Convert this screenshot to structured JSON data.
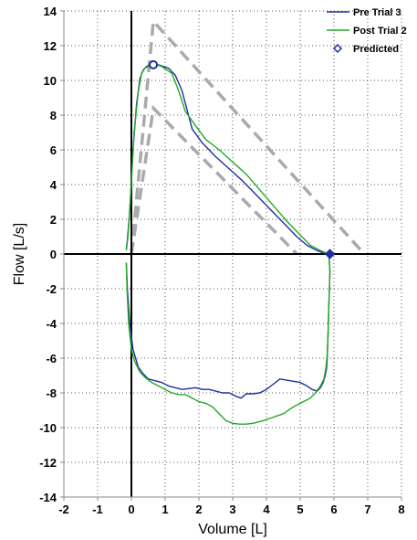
{
  "chart_data": {
    "type": "line",
    "xlabel": "Volume [L]",
    "ylabel": "Flow [L/s]",
    "xlim": [
      -2,
      8
    ],
    "ylim": [
      -14,
      14
    ],
    "xticks": [
      "-2",
      "-1",
      "0",
      "1",
      "2",
      "3",
      "4",
      "5",
      "6",
      "7",
      "8"
    ],
    "yticks": [
      "14",
      "12",
      "10",
      "8",
      "6",
      "4",
      "2",
      "0",
      "-2",
      "-4",
      "-6",
      "-8",
      "-10",
      "-12",
      "-14"
    ],
    "grid": true,
    "legend_position": "top-right",
    "series": [
      {
        "name": "Pre Trial 3",
        "color": "#1f2f9e",
        "x": [
          -0.15,
          -0.12,
          -0.05,
          0.05,
          0.15,
          0.25,
          0.35,
          0.45,
          0.55,
          0.65,
          0.8,
          0.95,
          1.1,
          1.3,
          1.5,
          1.8,
          2.1,
          2.5,
          2.9,
          3.3,
          3.7,
          4.1,
          4.5,
          4.9,
          5.2,
          5.5,
          5.7,
          5.85,
          5.88,
          5.85,
          5.82,
          5.8,
          5.78,
          5.74,
          5.68,
          5.6,
          5.5,
          5.35,
          5.2,
          5.0,
          4.7,
          4.4,
          4.2,
          4.0,
          3.8,
          3.6,
          3.4,
          3.25,
          3.1,
          2.9,
          2.7,
          2.5,
          2.3,
          2.1,
          1.9,
          1.7,
          1.5,
          1.3,
          1.1,
          0.9,
          0.7,
          0.5,
          0.35,
          0.2,
          0.05,
          -0.05,
          -0.12,
          -0.15
        ],
        "y": [
          0.3,
          0.8,
          2.5,
          6.0,
          8.6,
          10.1,
          10.6,
          10.8,
          10.9,
          10.9,
          10.9,
          10.8,
          10.7,
          10.3,
          9.4,
          7.2,
          6.4,
          5.6,
          4.9,
          4.2,
          3.4,
          2.6,
          1.8,
          1.0,
          0.5,
          0.2,
          0.05,
          0.0,
          -1.0,
          -3.0,
          -5.0,
          -6.0,
          -6.6,
          -7.0,
          -7.4,
          -7.7,
          -7.9,
          -7.8,
          -7.6,
          -7.4,
          -7.3,
          -7.2,
          -7.5,
          -7.8,
          -8.0,
          -8.05,
          -8.05,
          -8.3,
          -8.2,
          -8.0,
          -8.0,
          -7.9,
          -7.8,
          -7.8,
          -7.7,
          -7.75,
          -7.8,
          -7.7,
          -7.6,
          -7.4,
          -7.3,
          -7.2,
          -6.9,
          -6.5,
          -5.5,
          -4.0,
          -2.0,
          -0.5
        ]
      },
      {
        "name": "Post Trial 2",
        "color": "#22aa22",
        "x": [
          -0.15,
          -0.1,
          -0.02,
          0.08,
          0.2,
          0.3,
          0.4,
          0.5,
          0.6,
          0.75,
          0.9,
          1.05,
          1.2,
          1.4,
          1.6,
          1.9,
          2.2,
          2.6,
          3.0,
          3.4,
          3.8,
          4.2,
          4.6,
          5.0,
          5.3,
          5.6,
          5.78,
          5.85,
          5.88,
          5.85,
          5.82,
          5.8,
          5.76,
          5.7,
          5.6,
          5.45,
          5.3,
          5.1,
          4.8,
          4.5,
          4.2,
          3.9,
          3.6,
          3.4,
          3.2,
          3.0,
          2.8,
          2.6,
          2.4,
          2.2,
          2.0,
          1.8,
          1.6,
          1.4,
          1.2,
          1.0,
          0.8,
          0.6,
          0.4,
          0.25,
          0.1,
          0.0,
          -0.08,
          -0.13,
          -0.15
        ],
        "y": [
          0.2,
          1.0,
          3.5,
          7.0,
          9.3,
          10.4,
          10.7,
          10.8,
          10.9,
          10.9,
          10.8,
          10.6,
          10.4,
          9.4,
          8.2,
          7.4,
          6.6,
          6.0,
          5.3,
          4.6,
          3.7,
          2.8,
          1.9,
          1.1,
          0.5,
          0.2,
          0.05,
          0.0,
          -1.0,
          -3.0,
          -5.0,
          -5.8,
          -6.6,
          -7.2,
          -7.6,
          -8.0,
          -8.3,
          -8.5,
          -8.8,
          -9.2,
          -9.4,
          -9.6,
          -9.75,
          -9.8,
          -9.8,
          -9.75,
          -9.6,
          -9.2,
          -8.8,
          -8.6,
          -8.5,
          -8.3,
          -8.1,
          -8.1,
          -8.0,
          -7.8,
          -7.6,
          -7.4,
          -7.1,
          -6.8,
          -6.2,
          -5.5,
          -4.0,
          -2.0,
          -0.5
        ]
      }
    ],
    "predicted": {
      "name": "Predicted",
      "color": "#1f2f9e",
      "points": [
        {
          "x": 0.65,
          "y": 10.9
        },
        {
          "x": 5.88,
          "y": 0.0
        }
      ],
      "bands": [
        {
          "x": [
            0.0,
            0.65,
            6.9
          ],
          "y": [
            0.0,
            13.4,
            0.0
          ]
        },
        {
          "x": [
            0.0,
            0.65,
            4.9
          ],
          "y": [
            0.0,
            8.4,
            0.0
          ]
        }
      ]
    }
  }
}
